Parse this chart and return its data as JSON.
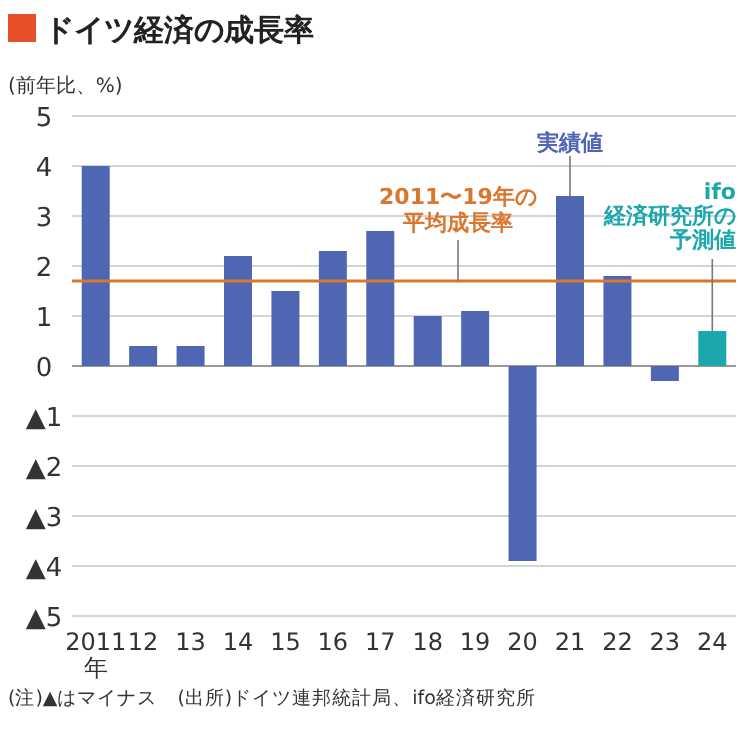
{
  "chart_data": {
    "type": "bar",
    "title": "ドイツ経済の成長率",
    "ylabel": "(前年比、%)",
    "categories": [
      "2011年",
      "12",
      "13",
      "14",
      "15",
      "16",
      "17",
      "18",
      "19",
      "20",
      "21",
      "22",
      "23",
      "24"
    ],
    "values": [
      4.0,
      0.4,
      0.4,
      2.2,
      1.5,
      2.3,
      2.7,
      1.0,
      1.1,
      -3.9,
      3.4,
      1.8,
      -0.3,
      0.7
    ],
    "colors": [
      "#4f67b3",
      "#4f67b3",
      "#4f67b3",
      "#4f67b3",
      "#4f67b3",
      "#4f67b3",
      "#4f67b3",
      "#4f67b3",
      "#4f67b3",
      "#4f67b3",
      "#4f67b3",
      "#4f67b3",
      "#4f67b3",
      "#1ca7ad"
    ],
    "ylim": [
      -5,
      5
    ],
    "yticks": [
      {
        "value": -5,
        "label": "▲5"
      },
      {
        "value": -4,
        "label": "▲4"
      },
      {
        "value": -3,
        "label": "▲3"
      },
      {
        "value": -2,
        "label": "▲2"
      },
      {
        "value": -1,
        "label": "▲1"
      },
      0,
      1,
      2,
      3,
      4,
      5
    ],
    "grid": "y",
    "ref_lines": [
      {
        "axis": "y",
        "value": 1.7,
        "label": "2011〜19年の平均成長率",
        "color": "#d9772e"
      }
    ],
    "annotations": [
      {
        "text": "実績値",
        "x": "21",
        "y": 3.4
      },
      {
        "text": "ifo経済研究所の予測値",
        "x": "24",
        "y": 0.7
      },
      "(注)▲はマイナス　(出所)ドイツ連邦統計局、ifo経済研究所"
    ]
  }
}
